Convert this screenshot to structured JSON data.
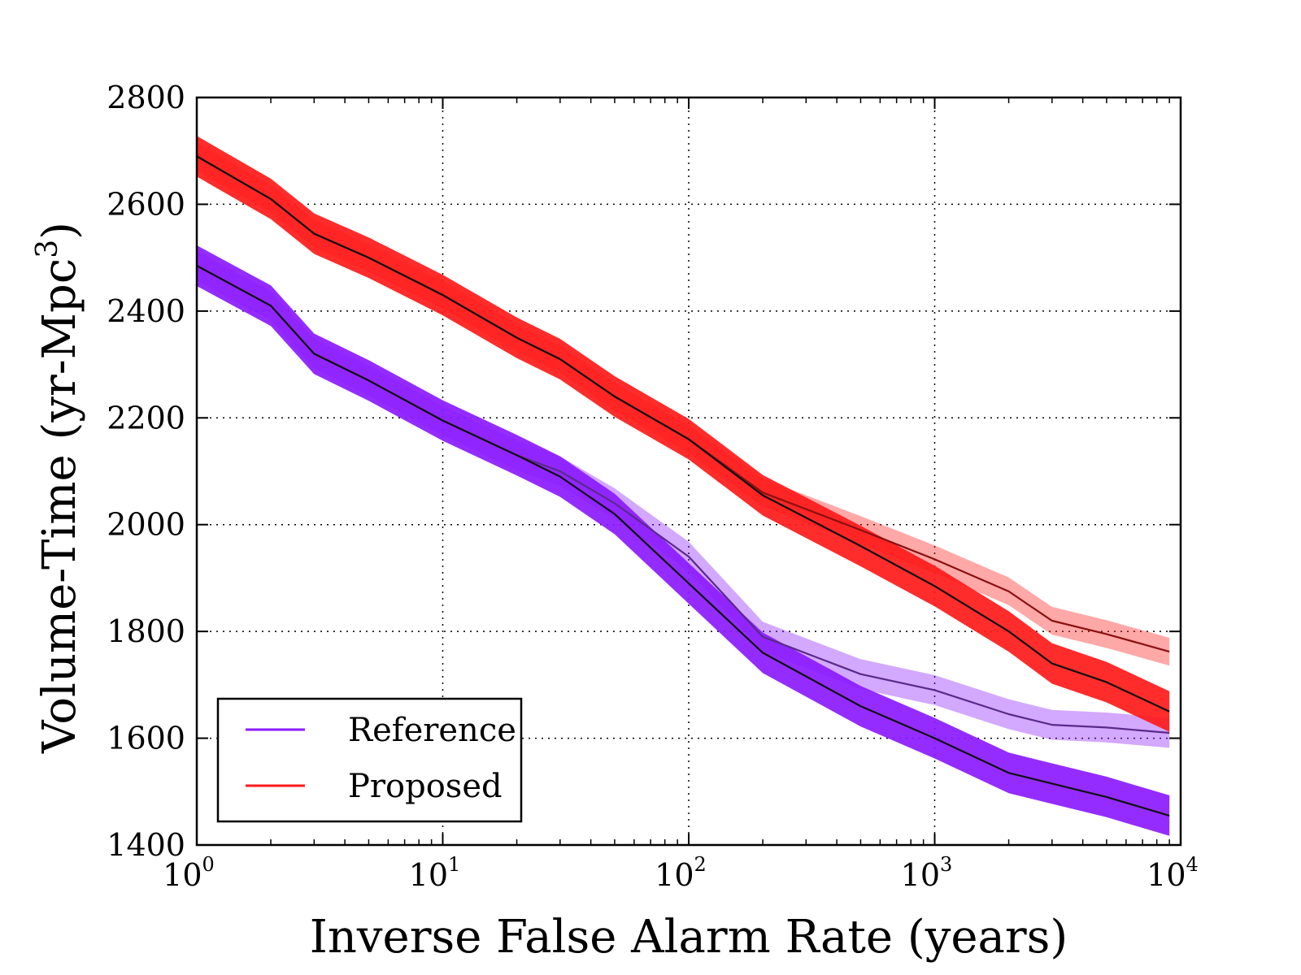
{
  "chart_data": {
    "type": "line",
    "xlabel": "Inverse False Alarm Rate (years)",
    "ylabel": "Volume-Time (yr-Mpc",
    "ylabel_sup": "3",
    "ylabel_close": ")",
    "x_scale": "log",
    "xlim": [
      1,
      10000
    ],
    "ylim": [
      1400,
      2800
    ],
    "x_tick_labels": [
      {
        "value": 1,
        "base": "10",
        "exp": "0"
      },
      {
        "value": 10,
        "base": "10",
        "exp": "1"
      },
      {
        "value": 100,
        "base": "10",
        "exp": "2"
      },
      {
        "value": 1000,
        "base": "10",
        "exp": "3"
      },
      {
        "value": 10000,
        "base": "10",
        "exp": "4"
      }
    ],
    "y_ticks": [
      1400,
      1600,
      1800,
      2000,
      2200,
      2400,
      2600,
      2800
    ],
    "grid": true,
    "legend_position": "lower-left",
    "colors": {
      "Reference": "#8B1AFF",
      "Proposed": "#FF1A1A",
      "mean_line": "#111111"
    },
    "x": [
      1,
      2,
      3,
      5,
      10,
      20,
      30,
      50,
      100,
      200,
      500,
      1000,
      2000,
      3000,
      5000,
      9000
    ],
    "series": [
      {
        "name": "Reference",
        "variant": "primary",
        "values": [
          2485,
          2410,
          2320,
          2270,
          2195,
          2130,
          2090,
          2020,
          1890,
          1760,
          1660,
          1600,
          1535,
          1515,
          1490,
          1455
        ],
        "band": 38
      },
      {
        "name": "Reference",
        "variant": "light",
        "values": [
          2485,
          2410,
          2320,
          2270,
          2195,
          2130,
          2100,
          2040,
          1940,
          1790,
          1720,
          1690,
          1645,
          1625,
          1620,
          1610
        ],
        "band": 28
      },
      {
        "name": "Proposed",
        "variant": "primary",
        "values": [
          2690,
          2610,
          2545,
          2500,
          2430,
          2350,
          2310,
          2240,
          2160,
          2055,
          1960,
          1885,
          1800,
          1740,
          1705,
          1650
        ],
        "band": 38
      },
      {
        "name": "Proposed",
        "variant": "light",
        "values": [
          2690,
          2610,
          2545,
          2500,
          2430,
          2350,
          2310,
          2240,
          2160,
          2060,
          1990,
          1935,
          1875,
          1820,
          1795,
          1762
        ],
        "band": 26
      }
    ]
  },
  "legend": [
    {
      "label": "Reference",
      "color": "#8B1AFF"
    },
    {
      "label": "Proposed",
      "color": "#FF1A1A"
    }
  ]
}
